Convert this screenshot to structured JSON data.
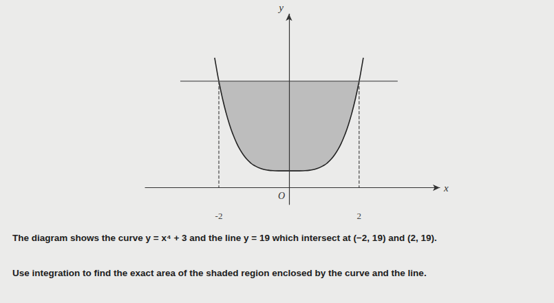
{
  "chart_data": {
    "type": "line",
    "x_label": "x",
    "y_label": "y",
    "xlim": [
      -4.1,
      4.3
    ],
    "ylim": [
      -3,
      31
    ],
    "xticks": [
      -2,
      2
    ],
    "tick_labels": "x",
    "grid": false,
    "origin_label": {
      "text": "O",
      "x": 0,
      "y": 0
    },
    "curve": {
      "x": [
        -2.12,
        -2.05,
        -2,
        -1.9,
        -1.8,
        -1.7,
        -1.6,
        -1.5,
        -1.4,
        -1.3,
        -1.2,
        -1.1,
        -1,
        -0.8,
        -0.6,
        -0.4,
        -0.2,
        0,
        0.2,
        0.4,
        0.6,
        0.8,
        1,
        1.1,
        1.2,
        1.3,
        1.4,
        1.5,
        1.6,
        1.7,
        1.8,
        1.9,
        2,
        2.05,
        2.12
      ],
      "values": [
        23.2,
        20.66,
        19,
        16.03,
        13.5,
        11.35,
        9.55,
        8.06,
        6.84,
        5.86,
        5.07,
        4.46,
        4,
        3.41,
        3.13,
        3.03,
        3,
        3,
        3,
        3.03,
        3.13,
        3.41,
        4,
        4.46,
        5.07,
        5.86,
        6.84,
        8.06,
        9.55,
        11.35,
        13.5,
        16.03,
        19,
        20.66,
        23.2
      ],
      "color": "#222222"
    },
    "line": {
      "y": 19,
      "x": [
        -3.1,
        3.1
      ],
      "color": "#555555"
    },
    "intersections": [
      [
        -2,
        19
      ],
      [
        2,
        19
      ]
    ],
    "region": {
      "color": "#bdbdbd"
    },
    "drop_lines": {
      "line_style": "dashed",
      "color": "#444444",
      "segments": [
        [
          [
            -2,
            19
          ],
          [
            -2,
            0
          ]
        ],
        [
          [
            2,
            19
          ],
          [
            2,
            0
          ]
        ]
      ]
    },
    "text": [
      "The diagram shows the curve y = x⁴ + 3 and the line y = 19 which intersect at (−2, 19) and (2, 19).",
      "Use integration to find the exact area of the shaded region enclosed by the curve and the line."
    ]
  }
}
